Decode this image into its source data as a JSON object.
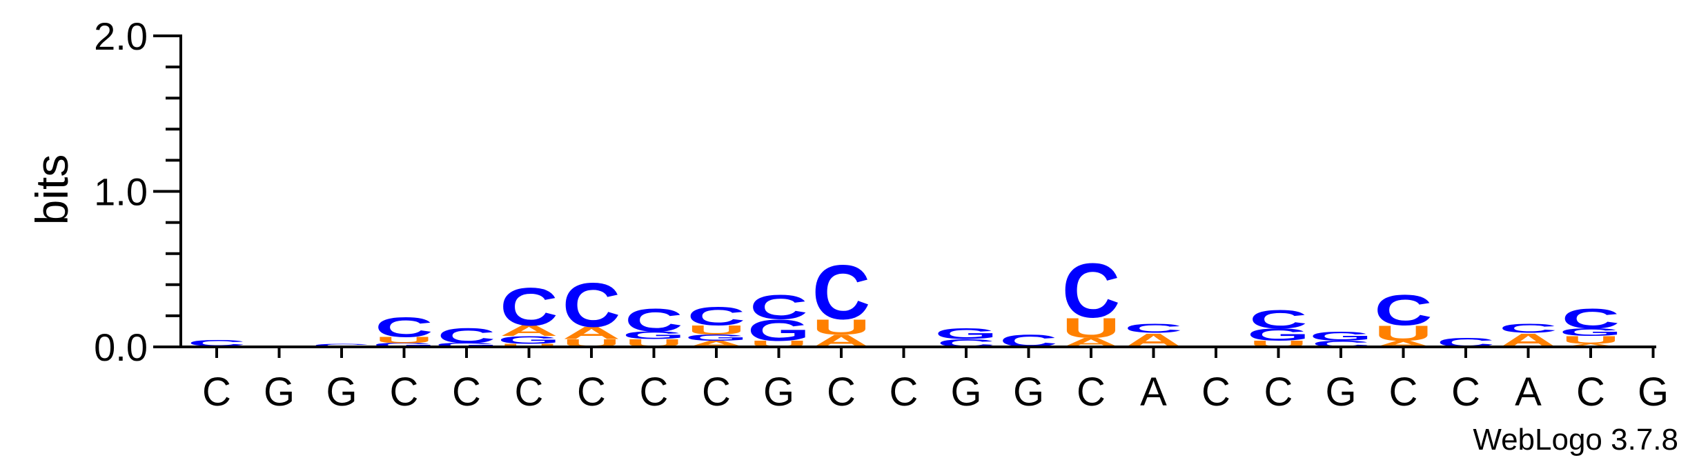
{
  "chart_data": {
    "type": "sequence-logo",
    "ylabel": "bits",
    "ylim": [
      0,
      2.0
    ],
    "yticks": [
      "0.0",
      "1.0",
      "2.0"
    ],
    "credit": "WebLogo 3.7.8",
    "colors": {
      "C": "#0000ff",
      "G": "#0000ff",
      "U": "#ff8000",
      "A": "#ff8000"
    },
    "positions": [
      {
        "label": "C",
        "stack": [
          [
            "G",
            0.005
          ],
          [
            "C",
            0.04
          ]
        ]
      },
      {
        "label": "G",
        "stack": []
      },
      {
        "label": "G",
        "stack": [
          [
            "C",
            0.02
          ]
        ]
      },
      {
        "label": "C",
        "stack": [
          [
            "G",
            0.025
          ],
          [
            "U",
            0.04
          ],
          [
            "C",
            0.13
          ]
        ]
      },
      {
        "label": "C",
        "stack": [
          [
            "G",
            0.025
          ],
          [
            "C",
            0.1
          ]
        ]
      },
      {
        "label": "C",
        "stack": [
          [
            "U",
            0.02
          ],
          [
            "G",
            0.05
          ],
          [
            "A",
            0.07
          ],
          [
            "C",
            0.25
          ]
        ]
      },
      {
        "label": "C",
        "stack": [
          [
            "U",
            0.05
          ],
          [
            "A",
            0.08
          ],
          [
            "C",
            0.29
          ]
        ]
      },
      {
        "label": "C",
        "stack": [
          [
            "U",
            0.05
          ],
          [
            "G",
            0.05
          ],
          [
            "C",
            0.15
          ]
        ]
      },
      {
        "label": "C",
        "stack": [
          [
            "A",
            0.04
          ],
          [
            "G",
            0.04
          ],
          [
            "U",
            0.06
          ],
          [
            "C",
            0.12
          ]
        ]
      },
      {
        "label": "G",
        "stack": [
          [
            "U",
            0.04
          ],
          [
            "G",
            0.14
          ],
          [
            "C",
            0.16
          ]
        ]
      },
      {
        "label": "C",
        "stack": [
          [
            "A",
            0.08
          ],
          [
            "U",
            0.1
          ],
          [
            "C",
            0.36
          ]
        ]
      },
      {
        "label": "C",
        "stack": []
      },
      {
        "label": "G",
        "stack": [
          [
            "C",
            0.05
          ],
          [
            "G",
            0.07
          ]
        ]
      },
      {
        "label": "G",
        "stack": [
          [
            "C",
            0.08
          ]
        ]
      },
      {
        "label": "C",
        "stack": [
          [
            "A",
            0.06
          ],
          [
            "U",
            0.13
          ],
          [
            "C",
            0.36
          ]
        ]
      },
      {
        "label": "A",
        "stack": [
          [
            "A",
            0.09
          ],
          [
            "C",
            0.06
          ]
        ]
      },
      {
        "label": "C",
        "stack": []
      },
      {
        "label": "C",
        "stack": [
          [
            "U",
            0.04
          ],
          [
            "G",
            0.08
          ],
          [
            "C",
            0.12
          ]
        ]
      },
      {
        "label": "G",
        "stack": [
          [
            "C",
            0.04
          ],
          [
            "G",
            0.06
          ]
        ]
      },
      {
        "label": "C",
        "stack": [
          [
            "A",
            0.04
          ],
          [
            "U",
            0.1
          ],
          [
            "C",
            0.2
          ]
        ]
      },
      {
        "label": "C",
        "stack": [
          [
            "C",
            0.06
          ]
        ]
      },
      {
        "label": "A",
        "stack": [
          [
            "A",
            0.09
          ],
          [
            "C",
            0.06
          ]
        ]
      },
      {
        "label": "C",
        "stack": [
          [
            "A",
            0.02
          ],
          [
            "U",
            0.05
          ],
          [
            "G",
            0.05
          ],
          [
            "C",
            0.13
          ]
        ]
      },
      {
        "label": "G",
        "stack": []
      }
    ]
  }
}
